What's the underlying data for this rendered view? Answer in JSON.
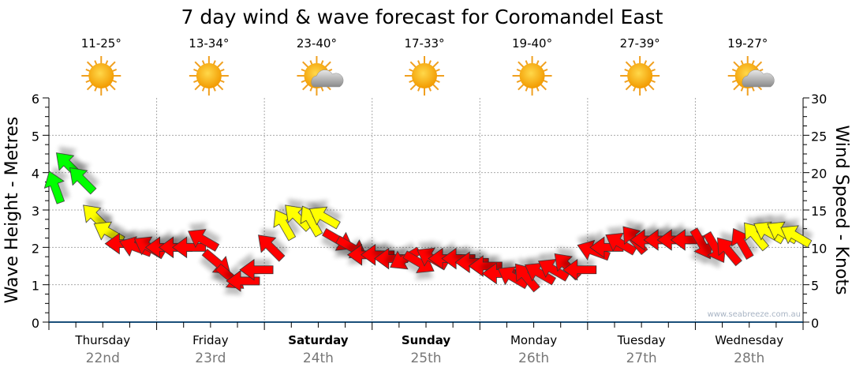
{
  "chart_data": {
    "type": "scatter",
    "title": "7 day wind & wave forecast for Coromandel East",
    "ylabel_left": "Wave Height - Metres",
    "ylabel_right": "Wind Speed - Knots",
    "ylim_left": [
      0,
      6
    ],
    "ylim_right": [
      0,
      30
    ],
    "yticks_left": [
      "0",
      "1",
      "2",
      "3",
      "4",
      "5",
      "6"
    ],
    "yticks_right": [
      "0",
      "5",
      "10",
      "15",
      "20",
      "25",
      "30"
    ],
    "grid": true,
    "watermark": "www.seabreeze.com.au",
    "days": [
      {
        "day": "Thursday",
        "date": "22nd",
        "bold": false,
        "temp": "11-25°",
        "weather": "sunny"
      },
      {
        "day": "Friday",
        "date": "23rd",
        "bold": false,
        "temp": "13-34°",
        "weather": "sunny"
      },
      {
        "day": "Saturday",
        "date": "24th",
        "bold": true,
        "temp": "23-40°",
        "weather": "partly-cloudy"
      },
      {
        "day": "Sunday",
        "date": "25th",
        "bold": true,
        "temp": "17-33°",
        "weather": "sunny"
      },
      {
        "day": "Monday",
        "date": "26th",
        "bold": false,
        "temp": "19-40°",
        "weather": "sunny"
      },
      {
        "day": "Tuesday",
        "date": "27th",
        "bold": false,
        "temp": "27-39°",
        "weather": "sunny"
      },
      {
        "day": "Wednesday",
        "date": "28th",
        "bold": false,
        "temp": "19-27°",
        "weather": "partly-cloudy"
      }
    ],
    "hours_step": 3,
    "wind_knots": [
      18,
      21,
      19,
      14,
      12,
      10.5,
      10,
      10,
      10,
      10,
      10,
      11,
      8,
      6,
      5.5,
      7,
      10,
      13,
      14,
      13.5,
      14,
      11,
      10,
      9,
      9,
      8.5,
      8.5,
      8,
      8.5,
      8.5,
      8.5,
      8,
      7.5,
      6.5,
      6,
      6,
      6.5,
      7,
      7.5,
      7,
      9.5,
      10,
      10.5,
      11,
      11,
      11,
      11,
      11,
      10.5,
      10,
      9.5,
      10.5,
      11.5,
      12,
      12,
      11.5
    ],
    "wind_bearing": [
      340,
      315,
      315,
      315,
      300,
      270,
      290,
      300,
      270,
      270,
      270,
      300,
      130,
      130,
      270,
      270,
      315,
      330,
      315,
      330,
      300,
      120,
      120,
      270,
      270,
      270,
      240,
      120,
      300,
      270,
      270,
      270,
      270,
      270,
      300,
      320,
      300,
      300,
      315,
      270,
      290,
      270,
      300,
      320,
      270,
      270,
      270,
      270,
      150,
      150,
      320,
      330,
      320,
      300,
      300,
      300
    ],
    "colors": {
      "light": "#ff0000",
      "moderate": "#ffff00",
      "strong": "#00ff00"
    },
    "thresholds": {
      "moderate": 11.5,
      "strong": 18
    }
  }
}
